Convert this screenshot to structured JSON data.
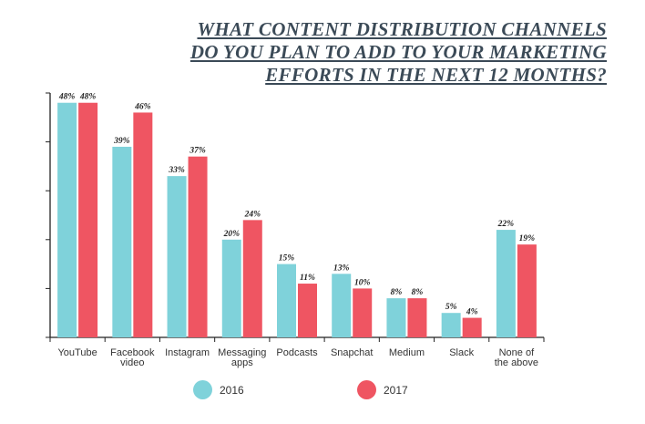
{
  "chart_data": {
    "type": "bar",
    "title": [
      "WHAT CONTENT DISTRIBUTION CHANNELS",
      "DO YOU PLAN TO ADD TO YOUR MARKETING",
      "EFFORTS IN THE NEXT 12 MONTHS?"
    ],
    "categories": [
      [
        "YouTube"
      ],
      [
        "Facebook",
        "video"
      ],
      [
        "Instagram"
      ],
      [
        "Messaging",
        "apps"
      ],
      [
        "Podcasts"
      ],
      [
        "Snapchat"
      ],
      [
        "Medium"
      ],
      [
        "Slack"
      ],
      [
        "None of",
        "the above"
      ]
    ],
    "series": [
      {
        "name": "2016",
        "color": "#7fd2da",
        "values": [
          48,
          39,
          33,
          20,
          15,
          13,
          8,
          5,
          22
        ],
        "labels": [
          "48%",
          "39%",
          "33%",
          "20%",
          "15%",
          "13%",
          "8%",
          "5%",
          "22%"
        ]
      },
      {
        "name": "2017",
        "color": "#ef5562",
        "values": [
          48,
          46,
          37,
          24,
          11,
          10,
          8,
          4,
          19
        ],
        "labels": [
          "48%",
          "46%",
          "37%",
          "24%",
          "11%",
          "10%",
          "8%",
          "4%",
          "19%"
        ]
      }
    ],
    "ylim": [
      0,
      50
    ],
    "grid": false,
    "legend_position": "bottom"
  }
}
